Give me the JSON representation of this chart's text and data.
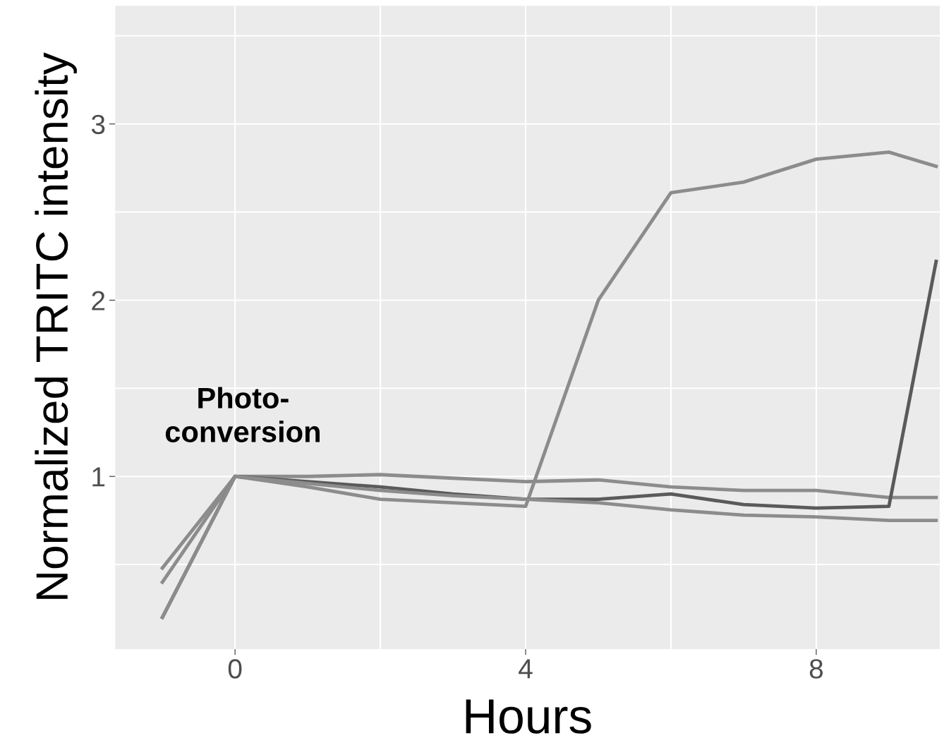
{
  "chart_data": {
    "type": "line",
    "xlabel": "Hours",
    "ylabel": "Normalized TRITC intensity",
    "x": [
      -1,
      0,
      1,
      2,
      3,
      4,
      5,
      6,
      7,
      8,
      9,
      9.65
    ],
    "series": [
      {
        "color": "#8c8c8c",
        "values": [
          0.48,
          1.0,
          1.0,
          1.01,
          0.99,
          0.97,
          0.98,
          0.94,
          0.92,
          0.92,
          0.88,
          0.88
        ]
      },
      {
        "color": "#8c8c8c",
        "values": [
          0.4,
          1.0,
          0.94,
          0.87,
          0.85,
          0.83,
          2.0,
          2.61,
          2.67,
          2.8,
          2.84,
          2.76
        ]
      },
      {
        "color": "#5a5a5a",
        "values": [
          0.2,
          1.0,
          0.97,
          0.94,
          0.9,
          0.87,
          0.87,
          0.9,
          0.84,
          0.82,
          0.83,
          2.22
        ]
      },
      {
        "color": "#8c8c8c",
        "values": [
          0.2,
          1.0,
          0.96,
          0.92,
          0.89,
          0.87,
          0.85,
          0.81,
          0.78,
          0.77,
          0.75,
          0.75
        ]
      }
    ],
    "xlim": [
      -1.65,
      9.7
    ],
    "ylim": [
      0.02,
      3.67
    ],
    "xticks": [
      0,
      {
        "value": 2,
        "label": null
      },
      4,
      {
        "value": 6,
        "label": null
      },
      8
    ],
    "yticks": [
      {
        "value": 0.5,
        "label": null
      },
      1,
      {
        "value": 1.5,
        "label": null
      },
      2,
      {
        "value": 2.5,
        "label": null
      },
      3,
      {
        "value": 3.5,
        "label": null
      }
    ],
    "grid": true,
    "line_style": "solid",
    "marker": "none",
    "annotations": [
      "Photo-\nconversion"
    ]
  }
}
